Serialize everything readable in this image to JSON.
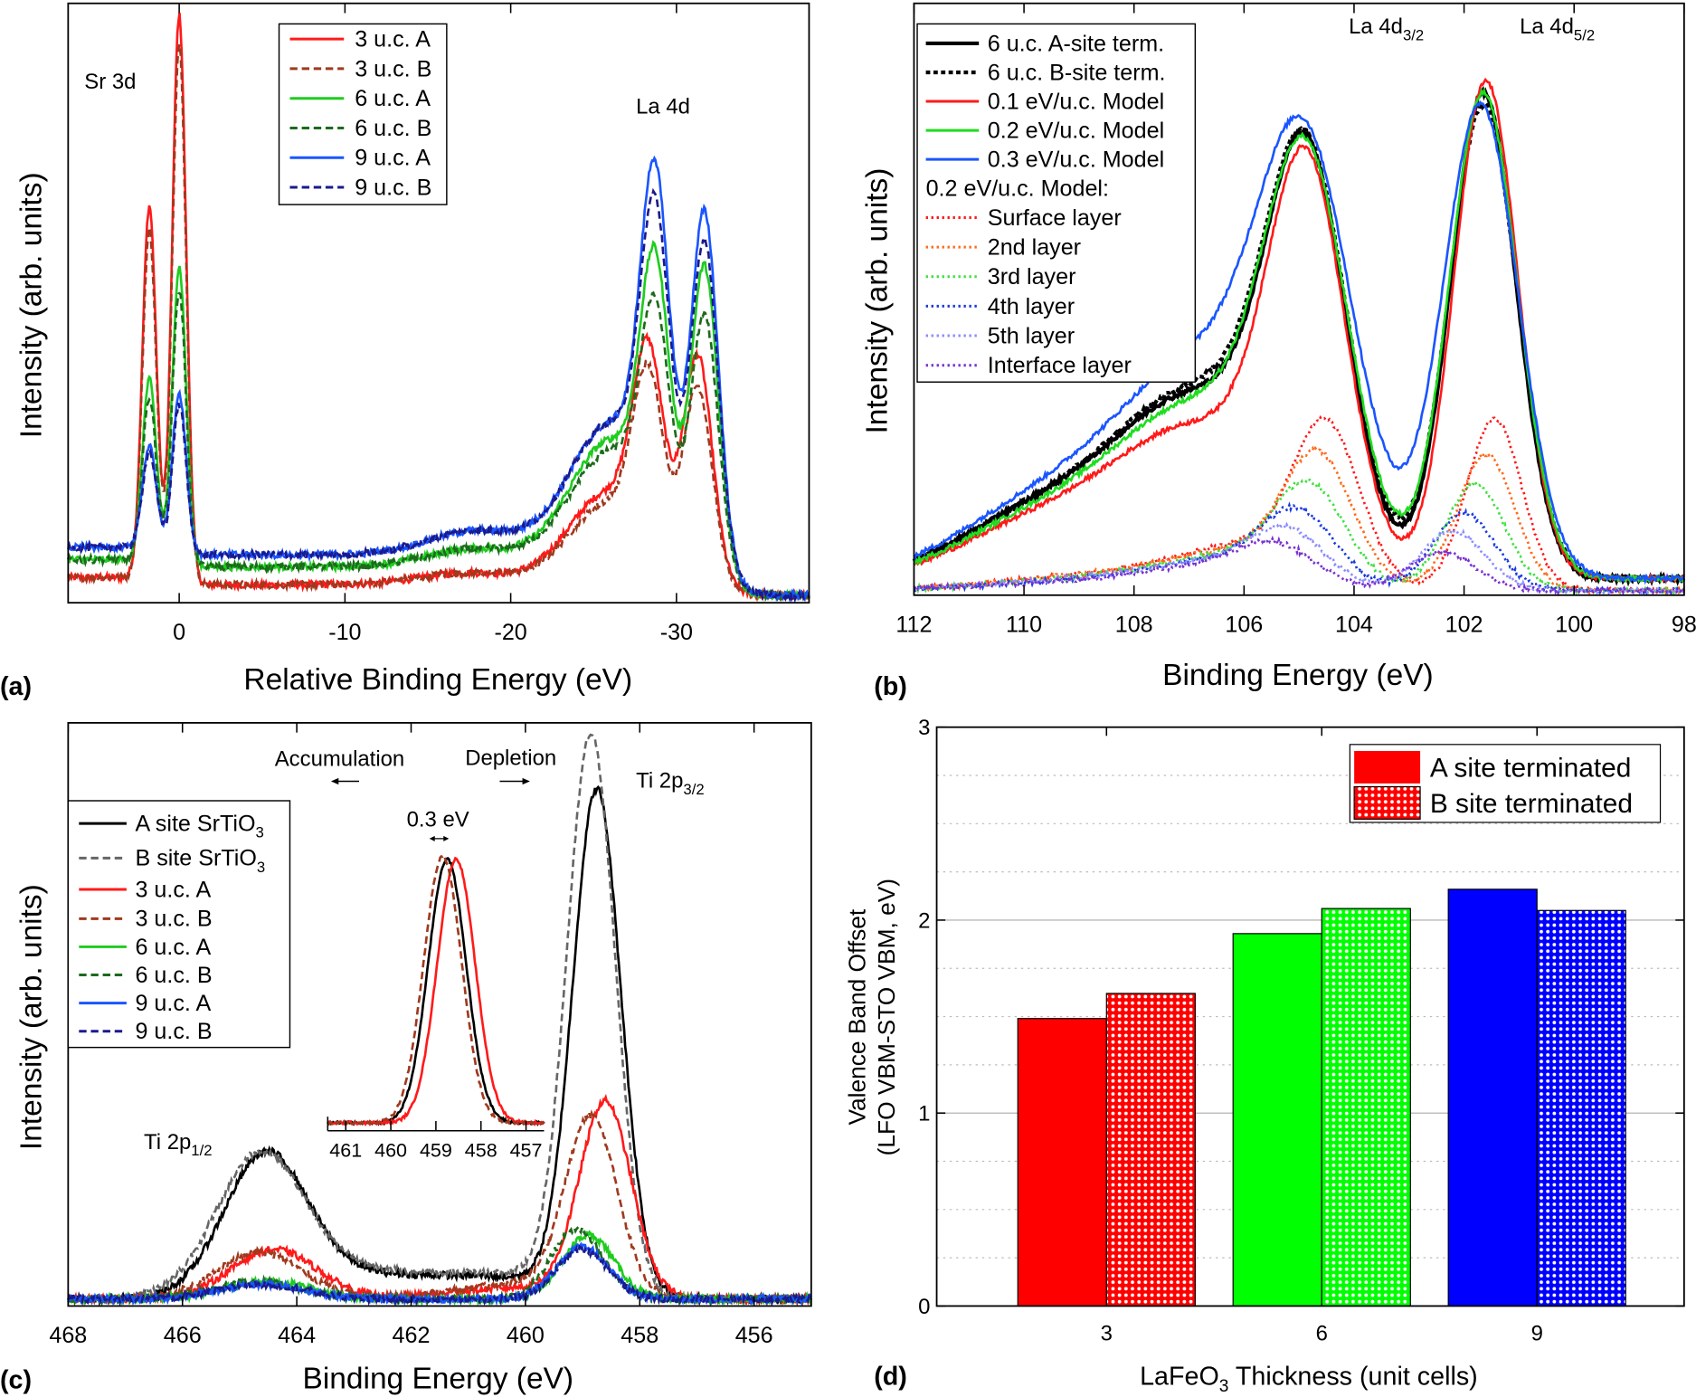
{
  "chart_data": [
    {
      "panel": "(a)",
      "type": "line",
      "xlabel": "Relative Binding Energy (eV)",
      "ylabel": "Intensity (arb. units)",
      "xlim": [
        6.7,
        -38
      ],
      "ylim": [
        0,
        1
      ],
      "xticks": [
        0,
        -10,
        -20,
        -30
      ],
      "annotations": [
        "Sr 3d",
        "La 4d"
      ],
      "legend_position": "top-center",
      "series": [
        {
          "name": "3 u.c. A",
          "color": "#ff1a1a",
          "dash": "solid",
          "baseline": 0.03,
          "peaks": [
            [
              1.8,
              0.62,
              0.42
            ],
            [
              0,
              0.95,
              0.42
            ],
            [
              -17.5,
              0.02,
              3
            ],
            [
              -25,
              0.07,
              2.2
            ],
            [
              -27,
              0.1,
              2.5
            ],
            [
              -28.3,
              0.3,
              0.9
            ],
            [
              -31.3,
              0.36,
              0.85
            ]
          ]
        },
        {
          "name": "3 u.c. B",
          "color": "#a0391e",
          "dash": "dashed",
          "baseline": 0.03,
          "peaks": [
            [
              1.8,
              0.58,
              0.42
            ],
            [
              0,
              0.9,
              0.42
            ],
            [
              -17.5,
              0.02,
              3
            ],
            [
              -25,
              0.06,
              2.2
            ],
            [
              -27,
              0.09,
              2.5
            ],
            [
              -28.3,
              0.27,
              0.9
            ],
            [
              -31.3,
              0.31,
              0.85
            ]
          ]
        },
        {
          "name": "6 u.c. A",
          "color": "#1fcc1f",
          "dash": "solid",
          "baseline": 0.06,
          "peaks": [
            [
              1.8,
              0.3,
              0.42
            ],
            [
              0,
              0.5,
              0.42
            ],
            [
              -18,
              0.03,
              3
            ],
            [
              -25,
              0.09,
              2.2
            ],
            [
              -27,
              0.14,
              2.5
            ],
            [
              -28.7,
              0.4,
              0.85
            ],
            [
              -31.7,
              0.48,
              0.8
            ]
          ]
        },
        {
          "name": "6 u.c. B",
          "color": "#1b6b1b",
          "dash": "dashed",
          "baseline": 0.06,
          "peaks": [
            [
              1.8,
              0.27,
              0.42
            ],
            [
              0,
              0.46,
              0.42
            ],
            [
              -18,
              0.03,
              3
            ],
            [
              -25,
              0.08,
              2.2
            ],
            [
              -27,
              0.13,
              2.5
            ],
            [
              -28.7,
              0.33,
              0.85
            ],
            [
              -31.7,
              0.4,
              0.8
            ]
          ]
        },
        {
          "name": "9 u.c. A",
          "color": "#1a55ff",
          "dash": "solid",
          "baseline": 0.08,
          "peaks": [
            [
              1.8,
              0.17,
              0.42
            ],
            [
              0,
              0.27,
              0.42
            ],
            [
              -18,
              0.04,
              3
            ],
            [
              -25,
              0.09,
              2.2
            ],
            [
              -27,
              0.15,
              2.5
            ],
            [
              -28.7,
              0.52,
              0.85
            ],
            [
              -31.7,
              0.55,
              0.8
            ]
          ]
        },
        {
          "name": "9 u.c. B",
          "color": "#1a1a8c",
          "dash": "dashed",
          "baseline": 0.08,
          "peaks": [
            [
              1.8,
              0.16,
              0.42
            ],
            [
              0,
              0.25,
              0.42
            ],
            [
              -18,
              0.04,
              3
            ],
            [
              -25,
              0.09,
              2.2
            ],
            [
              -27,
              0.15,
              2.5
            ],
            [
              -28.7,
              0.46,
              0.85
            ],
            [
              -31.7,
              0.5,
              0.8
            ]
          ]
        }
      ]
    },
    {
      "panel": "(b)",
      "type": "line",
      "xlabel": "Binding Energy (eV)",
      "ylabel": "Intensity (arb. units)",
      "xlim": [
        112,
        98
      ],
      "ylim": [
        0,
        1
      ],
      "xticks": [
        112,
        110,
        108,
        106,
        104,
        102,
        100,
        98
      ],
      "annotations": [
        {
          "base": "La 4d",
          "sub": "3/2"
        },
        {
          "base": "La 4d",
          "sub": "5/2"
        }
      ],
      "legend_position": "top-left",
      "legend_subheading": "0.2 eV/u.c. Model:",
      "series": [
        {
          "name": "6 u.c. A-site term.",
          "color": "#000000",
          "dash": "solid",
          "width": 3.5,
          "peaks": [
            [
              104.85,
              0.62,
              0.72
            ],
            [
              101.65,
              0.82,
              0.6
            ],
            [
              106.6,
              0.22,
              1.4
            ],
            [
              108.8,
              0.14,
              2.2
            ]
          ]
        },
        {
          "name": "6 u.c. B-site term.",
          "color": "#000000",
          "dash": "dotted-thick",
          "width": 3.5,
          "peaks": [
            [
              104.85,
              0.62,
              0.74
            ],
            [
              101.65,
              0.8,
              0.62
            ],
            [
              106.6,
              0.23,
              1.4
            ],
            [
              108.8,
              0.14,
              2.2
            ]
          ]
        },
        {
          "name": "0.1 eV/u.c. Model",
          "color": "#ff1a1a",
          "dash": "solid",
          "peaks": [
            [
              104.85,
              0.62,
              0.7
            ],
            [
              101.6,
              0.84,
              0.58
            ],
            [
              106.6,
              0.18,
              1.4
            ],
            [
              108.8,
              0.12,
              2.2
            ]
          ]
        },
        {
          "name": "0.2 eV/u.c. Model",
          "color": "#1fdd1f",
          "dash": "solid",
          "peaks": [
            [
              104.85,
              0.62,
              0.76
            ],
            [
              101.65,
              0.82,
              0.62
            ],
            [
              106.6,
              0.21,
              1.4
            ],
            [
              108.8,
              0.13,
              2.2
            ]
          ]
        },
        {
          "name": "0.3 eV/u.c. Model",
          "color": "#1a55ff",
          "dash": "solid",
          "peaks": [
            [
              104.85,
              0.62,
              0.86
            ],
            [
              101.7,
              0.8,
              0.68
            ],
            [
              106.6,
              0.26,
              1.4
            ],
            [
              108.8,
              0.16,
              2.2
            ]
          ]
        },
        {
          "name": "Surface layer",
          "color": "#ff1a1a",
          "dash": "dotted",
          "peaks": [
            [
              104.5,
              0.25,
              0.6
            ],
            [
              101.45,
              0.29,
              0.5
            ],
            [
              105.8,
              0.06,
              1.2
            ],
            [
              108,
              0.03,
              2
            ]
          ]
        },
        {
          "name": "2nd layer",
          "color": "#ff6a1a",
          "dash": "dotted",
          "peaks": [
            [
              104.65,
              0.2,
              0.62
            ],
            [
              101.6,
              0.23,
              0.52
            ],
            [
              105.9,
              0.05,
              1.2
            ],
            [
              108,
              0.03,
              2
            ]
          ]
        },
        {
          "name": "3rd layer",
          "color": "#3fe03f",
          "dash": "dotted",
          "peaks": [
            [
              104.8,
              0.15,
              0.64
            ],
            [
              101.8,
              0.18,
              0.54
            ],
            [
              106,
              0.045,
              1.2
            ],
            [
              108,
              0.025,
              2
            ]
          ]
        },
        {
          "name": "4th layer",
          "color": "#1a3adf",
          "dash": "dotted",
          "peaks": [
            [
              105.0,
              0.11,
              0.66
            ],
            [
              102.0,
              0.13,
              0.56
            ],
            [
              106.2,
              0.04,
              1.2
            ],
            [
              108.2,
              0.02,
              2
            ]
          ]
        },
        {
          "name": "5th layer",
          "color": "#8c8cff",
          "dash": "dotted",
          "peaks": [
            [
              105.2,
              0.08,
              0.68
            ],
            [
              102.2,
              0.1,
              0.58
            ],
            [
              106.4,
              0.035,
              1.2
            ],
            [
              108.4,
              0.02,
              2
            ]
          ]
        },
        {
          "name": "Interface layer",
          "color": "#7a2fd0",
          "dash": "dotted",
          "peaks": [
            [
              105.4,
              0.06,
              0.7
            ],
            [
              102.4,
              0.065,
              0.6
            ],
            [
              106.6,
              0.03,
              1.2
            ],
            [
              108.6,
              0.015,
              2
            ]
          ]
        }
      ]
    },
    {
      "panel": "(c)",
      "type": "line",
      "xlabel": "Binding Energy (eV)",
      "ylabel": "Intensity (arb. units)",
      "xlim": [
        468,
        455
      ],
      "ylim": [
        0,
        1
      ],
      "xticks": [
        468,
        466,
        464,
        462,
        460,
        458,
        456
      ],
      "annotations": {
        "accumulation": "Accumulation",
        "depletion": "Depletion",
        "shift": "0.3 eV",
        "ti2p32": {
          "base": "Ti 2p",
          "sub": "3/2"
        },
        "ti2p12": {
          "base": "Ti 2p",
          "sub": "1/2"
        }
      },
      "legend_position": "middle-left",
      "series": [
        {
          "name": "A site SrTiO",
          "sub": "3",
          "color": "#000000",
          "dash": "solid",
          "peaks": [
            [
              458.75,
              0.86,
              0.42
            ],
            [
              464.55,
              0.23,
              0.72
            ],
            [
              460.2,
              0.03,
              1.2
            ],
            [
              463,
              0.04,
              1.5
            ]
          ]
        },
        {
          "name": "B site SrTiO",
          "sub": "3",
          "color": "#666666",
          "dash": "dashed",
          "peaks": [
            [
              458.85,
              0.95,
              0.42
            ],
            [
              464.65,
              0.23,
              0.76
            ],
            [
              460.2,
              0.035,
              1.2
            ],
            [
              463,
              0.045,
              1.5
            ]
          ]
        },
        {
          "name": "3 u.c. A",
          "color": "#ff1a1a",
          "dash": "solid",
          "peaks": [
            [
              458.6,
              0.33,
              0.45
            ],
            [
              464.4,
              0.085,
              0.75
            ],
            [
              460,
              0.02,
              1.2
            ]
          ]
        },
        {
          "name": "3 u.c. B",
          "color": "#a0391e",
          "dash": "dashed",
          "peaks": [
            [
              458.85,
              0.3,
              0.45
            ],
            [
              464.65,
              0.08,
              0.75
            ],
            [
              460,
              0.025,
              1.2
            ]
          ]
        },
        {
          "name": "6 u.c. A",
          "color": "#1fcc1f",
          "dash": "solid",
          "peaks": [
            [
              458.9,
              0.11,
              0.45
            ],
            [
              464.5,
              0.03,
              0.75
            ]
          ]
        },
        {
          "name": "6 u.c. B",
          "color": "#1b6b1b",
          "dash": "dashed",
          "peaks": [
            [
              459.1,
              0.12,
              0.45
            ],
            [
              464.7,
              0.03,
              0.75
            ]
          ]
        },
        {
          "name": "9 u.c. A",
          "color": "#1a55ff",
          "dash": "solid",
          "peaks": [
            [
              459.0,
              0.09,
              0.45
            ],
            [
              464.6,
              0.025,
              0.75
            ]
          ]
        },
        {
          "name": "9 u.c. B",
          "color": "#1a1a8c",
          "dash": "dashed",
          "peaks": [
            [
              459.0,
              0.085,
              0.45
            ],
            [
              464.6,
              0.025,
              0.75
            ]
          ]
        }
      ],
      "inset": {
        "xlim": [
          461.4,
          456.6
        ],
        "xticks": [
          461,
          460,
          459,
          458,
          457
        ],
        "series": [
          {
            "name": "A site SrTiO3",
            "color": "#000000",
            "dash": "solid",
            "center": 458.75,
            "height": 0.92,
            "sigma": 0.42
          },
          {
            "name": "3 u.c. A",
            "color": "#ff1a1a",
            "dash": "solid",
            "center": 458.55,
            "height": 0.92,
            "sigma": 0.42
          },
          {
            "name": "3 u.c. B",
            "color": "#a0391e",
            "dash": "dashed",
            "center": 458.85,
            "height": 0.93,
            "sigma": 0.42
          }
        ]
      }
    },
    {
      "panel": "(d)",
      "type": "bar",
      "title": "",
      "xlabel": {
        "base": "LaFeO",
        "sub": "3",
        "rest": " Thickness (unit cells)"
      },
      "ylabel": [
        "Valence Band Offset",
        "(LFO VBM-STO VBM, eV)"
      ],
      "categories": [
        "3",
        "6",
        "9"
      ],
      "colors": [
        "#ff0000",
        "#00ff00",
        "#0000ff"
      ],
      "ylim": [
        0,
        3
      ],
      "yticks": [
        0,
        1,
        2,
        3
      ],
      "grid": true,
      "legend_position": "top-right",
      "series": [
        {
          "name": "A site terminated",
          "pattern": "solid",
          "values": [
            1.49,
            1.93,
            2.16
          ]
        },
        {
          "name": "B site terminated",
          "pattern": "crosshatch",
          "values": [
            1.62,
            2.06,
            2.05
          ]
        }
      ]
    }
  ],
  "panel_labels": [
    "(a)",
    "(b)",
    "(c)",
    "(d)"
  ]
}
